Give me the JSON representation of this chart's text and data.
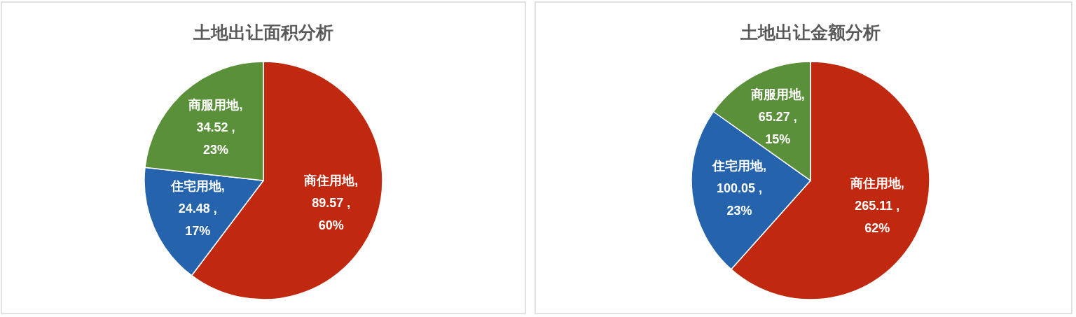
{
  "chart_data": [
    {
      "type": "pie",
      "title": "土地出让面积分析",
      "categories": [
        "商住用地",
        "住宅用地",
        "商服用地"
      ],
      "values": [
        89.57,
        24.48,
        34.52
      ],
      "colors": [
        "#c0290f",
        "#2563ad",
        "#5b903a"
      ],
      "value_labels": [
        ",\n89.57 ,\n60%",
        ",\n24.48 ,\n17%",
        ",\n34.52 ,\n23%"
      ]
    },
    {
      "type": "pie",
      "title": "土地出让金额分析",
      "categories": [
        "商住用地",
        "住宅用地",
        "商服用地"
      ],
      "values": [
        265.11,
        100.05,
        65.27
      ],
      "colors": [
        "#c0290f",
        "#2563ad",
        "#5b903a"
      ],
      "value_labels": [
        ",\n265.11 ,\n62%",
        ",\n100.05 ,\n23%",
        ",\n65.27 ,\n15%"
      ]
    }
  ]
}
